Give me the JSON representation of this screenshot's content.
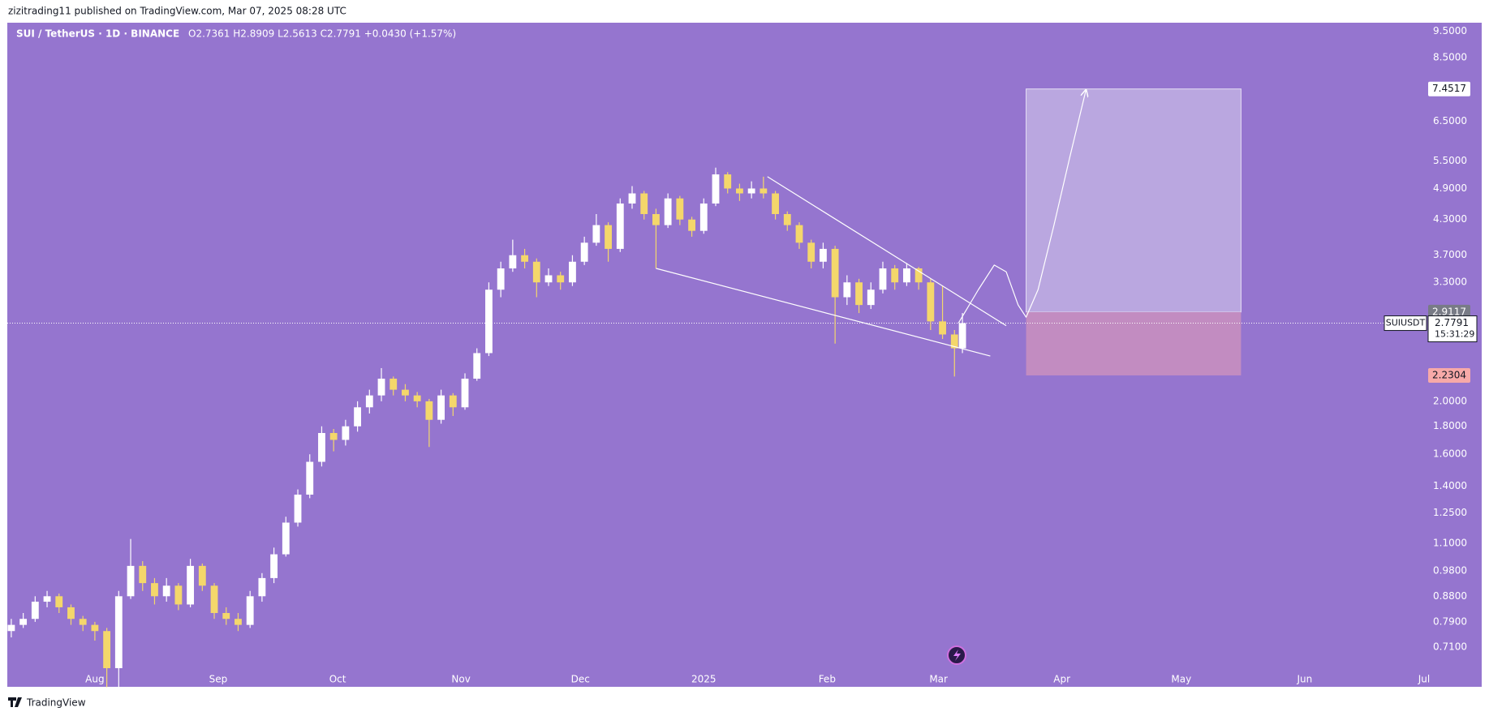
{
  "header": {
    "text": "zizitrading11 published on TradingView.com, Mar 07, 2025 08:28 UTC"
  },
  "footer": {
    "brand": "TradingView"
  },
  "chart_data": {
    "type": "candlestick",
    "legend": {
      "symbol": "SUI / TetherUS · 1D · BINANCE",
      "ohlc": "O2.7361 H2.8909 L2.5613 C2.7791 +0.0430 (+1.57%)"
    },
    "log_scale": true,
    "background": "#9575cf",
    "up_color": "#ffffff",
    "down_color": "#f4d76b",
    "xlim": [
      -22,
      334
    ],
    "xticks": [
      {
        "value": 0,
        "label": "Aug"
      },
      {
        "value": 31,
        "label": "Sep"
      },
      {
        "value": 61,
        "label": "Oct"
      },
      {
        "value": 92,
        "label": "Nov"
      },
      {
        "value": 122,
        "label": "Dec"
      },
      {
        "value": 153,
        "label": "2025"
      },
      {
        "value": 184,
        "label": "Feb"
      },
      {
        "value": 212,
        "label": "Mar"
      },
      {
        "value": 243,
        "label": "Apr"
      },
      {
        "value": 273,
        "label": "May"
      },
      {
        "value": 304,
        "label": "Jun"
      },
      {
        "value": 334,
        "label": "Jul"
      }
    ],
    "ylim": [
      0.603,
      9.85
    ],
    "yticks": [
      {
        "value": 9.5,
        "label": "9.5000"
      },
      {
        "value": 8.5,
        "label": "8.5000"
      },
      {
        "value": 6.5,
        "label": "6.5000"
      },
      {
        "value": 5.5,
        "label": "5.5000"
      },
      {
        "value": 4.9,
        "label": "4.9000"
      },
      {
        "value": 4.3,
        "label": "4.3000"
      },
      {
        "value": 3.7,
        "label": "3.7000"
      },
      {
        "value": 3.3,
        "label": "3.3000"
      },
      {
        "value": 2,
        "label": "2.0000"
      },
      {
        "value": 1.8,
        "label": "1.8000"
      },
      {
        "value": 1.6,
        "label": "1.6000"
      },
      {
        "value": 1.4,
        "label": "1.4000"
      },
      {
        "value": 1.25,
        "label": "1.2500"
      },
      {
        "value": 1.1,
        "label": "1.1000"
      },
      {
        "value": 0.98,
        "label": "0.9800"
      },
      {
        "value": 0.88,
        "label": "0.8800"
      },
      {
        "value": 0.79,
        "label": "0.7900"
      },
      {
        "value": 0.71,
        "label": "0.7100"
      }
    ],
    "candles": [
      {
        "x": -21,
        "o": 0.76,
        "h": 0.8,
        "l": 0.74,
        "c": 0.78
      },
      {
        "x": -18,
        "o": 0.78,
        "h": 0.82,
        "l": 0.77,
        "c": 0.8
      },
      {
        "x": -15,
        "o": 0.8,
        "h": 0.88,
        "l": 0.79,
        "c": 0.86
      },
      {
        "x": -12,
        "o": 0.86,
        "h": 0.9,
        "l": 0.84,
        "c": 0.88
      },
      {
        "x": -9,
        "o": 0.88,
        "h": 0.89,
        "l": 0.82,
        "c": 0.84
      },
      {
        "x": -6,
        "o": 0.84,
        "h": 0.85,
        "l": 0.78,
        "c": 0.8
      },
      {
        "x": -3,
        "o": 0.8,
        "h": 0.81,
        "l": 0.76,
        "c": 0.78
      },
      {
        "x": 0,
        "o": 0.78,
        "h": 0.79,
        "l": 0.73,
        "c": 0.76
      },
      {
        "x": 3,
        "o": 0.76,
        "h": 0.77,
        "l": 0.6,
        "c": 0.65
      },
      {
        "x": 6,
        "o": 0.65,
        "h": 0.9,
        "l": 0.6,
        "c": 0.88
      },
      {
        "x": 9,
        "o": 0.88,
        "h": 1.12,
        "l": 0.87,
        "c": 1.0
      },
      {
        "x": 12,
        "o": 1.0,
        "h": 1.02,
        "l": 0.9,
        "c": 0.93
      },
      {
        "x": 15,
        "o": 0.93,
        "h": 0.95,
        "l": 0.85,
        "c": 0.88
      },
      {
        "x": 18,
        "o": 0.88,
        "h": 0.95,
        "l": 0.86,
        "c": 0.92
      },
      {
        "x": 21,
        "o": 0.92,
        "h": 0.93,
        "l": 0.83,
        "c": 0.85
      },
      {
        "x": 24,
        "o": 0.85,
        "h": 1.03,
        "l": 0.84,
        "c": 1.0
      },
      {
        "x": 27,
        "o": 1.0,
        "h": 1.01,
        "l": 0.9,
        "c": 0.92
      },
      {
        "x": 30,
        "o": 0.92,
        "h": 0.93,
        "l": 0.8,
        "c": 0.82
      },
      {
        "x": 33,
        "o": 0.82,
        "h": 0.84,
        "l": 0.78,
        "c": 0.8
      },
      {
        "x": 36,
        "o": 0.8,
        "h": 0.82,
        "l": 0.76,
        "c": 0.78
      },
      {
        "x": 39,
        "o": 0.78,
        "h": 0.9,
        "l": 0.77,
        "c": 0.88
      },
      {
        "x": 42,
        "o": 0.88,
        "h": 0.97,
        "l": 0.86,
        "c": 0.95
      },
      {
        "x": 45,
        "o": 0.95,
        "h": 1.08,
        "l": 0.93,
        "c": 1.05
      },
      {
        "x": 48,
        "o": 1.05,
        "h": 1.23,
        "l": 1.04,
        "c": 1.2
      },
      {
        "x": 51,
        "o": 1.2,
        "h": 1.38,
        "l": 1.18,
        "c": 1.35
      },
      {
        "x": 54,
        "o": 1.35,
        "h": 1.6,
        "l": 1.33,
        "c": 1.55
      },
      {
        "x": 57,
        "o": 1.55,
        "h": 1.8,
        "l": 1.52,
        "c": 1.75
      },
      {
        "x": 60,
        "o": 1.75,
        "h": 1.78,
        "l": 1.62,
        "c": 1.7
      },
      {
        "x": 63,
        "o": 1.7,
        "h": 1.85,
        "l": 1.66,
        "c": 1.8
      },
      {
        "x": 66,
        "o": 1.8,
        "h": 2.0,
        "l": 1.76,
        "c": 1.95
      },
      {
        "x": 69,
        "o": 1.95,
        "h": 2.1,
        "l": 1.9,
        "c": 2.05
      },
      {
        "x": 72,
        "o": 2.05,
        "h": 2.3,
        "l": 2.0,
        "c": 2.2
      },
      {
        "x": 75,
        "o": 2.2,
        "h": 2.22,
        "l": 2.05,
        "c": 2.1
      },
      {
        "x": 78,
        "o": 2.1,
        "h": 2.15,
        "l": 2.0,
        "c": 2.05
      },
      {
        "x": 81,
        "o": 2.05,
        "h": 2.08,
        "l": 1.95,
        "c": 2.0
      },
      {
        "x": 84,
        "o": 2.0,
        "h": 2.02,
        "l": 1.65,
        "c": 1.85
      },
      {
        "x": 87,
        "o": 1.85,
        "h": 2.1,
        "l": 1.82,
        "c": 2.05
      },
      {
        "x": 90,
        "o": 2.05,
        "h": 2.07,
        "l": 1.88,
        "c": 1.95
      },
      {
        "x": 93,
        "o": 1.95,
        "h": 2.25,
        "l": 1.93,
        "c": 2.2
      },
      {
        "x": 96,
        "o": 2.2,
        "h": 2.5,
        "l": 2.18,
        "c": 2.45
      },
      {
        "x": 99,
        "o": 2.45,
        "h": 3.3,
        "l": 2.42,
        "c": 3.2
      },
      {
        "x": 102,
        "o": 3.2,
        "h": 3.6,
        "l": 3.1,
        "c": 3.5
      },
      {
        "x": 105,
        "o": 3.5,
        "h": 3.95,
        "l": 3.45,
        "c": 3.7
      },
      {
        "x": 108,
        "o": 3.7,
        "h": 3.8,
        "l": 3.5,
        "c": 3.6
      },
      {
        "x": 111,
        "o": 3.6,
        "h": 3.65,
        "l": 3.1,
        "c": 3.3
      },
      {
        "x": 114,
        "o": 3.3,
        "h": 3.5,
        "l": 3.25,
        "c": 3.4
      },
      {
        "x": 117,
        "o": 3.4,
        "h": 3.45,
        "l": 3.2,
        "c": 3.3
      },
      {
        "x": 120,
        "o": 3.3,
        "h": 3.7,
        "l": 3.25,
        "c": 3.6
      },
      {
        "x": 123,
        "o": 3.6,
        "h": 4.0,
        "l": 3.55,
        "c": 3.9
      },
      {
        "x": 126,
        "o": 3.9,
        "h": 4.4,
        "l": 3.85,
        "c": 4.2
      },
      {
        "x": 129,
        "o": 4.2,
        "h": 4.25,
        "l": 3.6,
        "c": 3.8
      },
      {
        "x": 132,
        "o": 3.8,
        "h": 4.7,
        "l": 3.75,
        "c": 4.6
      },
      {
        "x": 135,
        "o": 4.6,
        "h": 4.95,
        "l": 4.5,
        "c": 4.8
      },
      {
        "x": 138,
        "o": 4.8,
        "h": 4.85,
        "l": 4.3,
        "c": 4.4
      },
      {
        "x": 141,
        "o": 4.4,
        "h": 4.5,
        "l": 3.5,
        "c": 4.2
      },
      {
        "x": 144,
        "o": 4.2,
        "h": 4.8,
        "l": 4.15,
        "c": 4.7
      },
      {
        "x": 147,
        "o": 4.7,
        "h": 4.75,
        "l": 4.2,
        "c": 4.3
      },
      {
        "x": 150,
        "o": 4.3,
        "h": 4.35,
        "l": 4.0,
        "c": 4.1
      },
      {
        "x": 153,
        "o": 4.1,
        "h": 4.7,
        "l": 4.05,
        "c": 4.6
      },
      {
        "x": 156,
        "o": 4.6,
        "h": 5.35,
        "l": 4.55,
        "c": 5.2
      },
      {
        "x": 159,
        "o": 5.2,
        "h": 5.25,
        "l": 4.8,
        "c": 4.9
      },
      {
        "x": 162,
        "o": 4.9,
        "h": 5.0,
        "l": 4.65,
        "c": 4.8
      },
      {
        "x": 165,
        "o": 4.8,
        "h": 5.05,
        "l": 4.7,
        "c": 4.9
      },
      {
        "x": 168,
        "o": 4.9,
        "h": 5.15,
        "l": 4.7,
        "c": 4.8
      },
      {
        "x": 171,
        "o": 4.8,
        "h": 4.85,
        "l": 4.3,
        "c": 4.4
      },
      {
        "x": 174,
        "o": 4.4,
        "h": 4.45,
        "l": 4.1,
        "c": 4.2
      },
      {
        "x": 177,
        "o": 4.2,
        "h": 4.25,
        "l": 3.8,
        "c": 3.9
      },
      {
        "x": 180,
        "o": 3.9,
        "h": 3.95,
        "l": 3.5,
        "c": 3.6
      },
      {
        "x": 183,
        "o": 3.6,
        "h": 3.9,
        "l": 3.5,
        "c": 3.8
      },
      {
        "x": 186,
        "o": 3.8,
        "h": 3.85,
        "l": 2.55,
        "c": 3.1
      },
      {
        "x": 189,
        "o": 3.1,
        "h": 3.4,
        "l": 3.0,
        "c": 3.3
      },
      {
        "x": 192,
        "o": 3.3,
        "h": 3.35,
        "l": 2.9,
        "c": 3.0
      },
      {
        "x": 195,
        "o": 3.0,
        "h": 3.3,
        "l": 2.95,
        "c": 3.2
      },
      {
        "x": 198,
        "o": 3.2,
        "h": 3.6,
        "l": 3.15,
        "c": 3.5
      },
      {
        "x": 201,
        "o": 3.5,
        "h": 3.55,
        "l": 3.2,
        "c": 3.3
      },
      {
        "x": 204,
        "o": 3.3,
        "h": 3.58,
        "l": 3.25,
        "c": 3.5
      },
      {
        "x": 207,
        "o": 3.5,
        "h": 3.52,
        "l": 3.2,
        "c": 3.3
      },
      {
        "x": 210,
        "o": 3.3,
        "h": 3.35,
        "l": 2.7,
        "c": 2.8
      },
      {
        "x": 213,
        "o": 2.8,
        "h": 3.25,
        "l": 2.6,
        "c": 2.65
      },
      {
        "x": 216,
        "o": 2.65,
        "h": 2.7,
        "l": 2.22,
        "c": 2.5
      },
      {
        "x": 218,
        "o": 2.5,
        "h": 2.9,
        "l": 2.45,
        "c": 2.78
      }
    ],
    "last_price": {
      "value": 2.7791,
      "symbol": "SUIUSDT",
      "countdown": "15:31:29"
    },
    "position": {
      "start_x": 234,
      "end_x": 288,
      "target": 7.4517,
      "entry": 2.9117,
      "stop": 2.2304,
      "target_color": "#baa7e0",
      "stop_color": "#c28cc1"
    },
    "drawings": [
      {
        "x": [
          169,
          229
        ],
        "y": [
          5.15,
          2.75
        ]
      },
      {
        "x": [
          141,
          225
        ],
        "y": [
          3.5,
          2.42
        ]
      },
      {
        "x": [
          217,
          222,
          226,
          229,
          232,
          234,
          237,
          241,
          245,
          249
        ],
        "y": [
          2.78,
          3.2,
          3.55,
          3.45,
          3.0,
          2.85,
          3.2,
          4.2,
          5.6,
          7.4
        ]
      }
    ]
  }
}
